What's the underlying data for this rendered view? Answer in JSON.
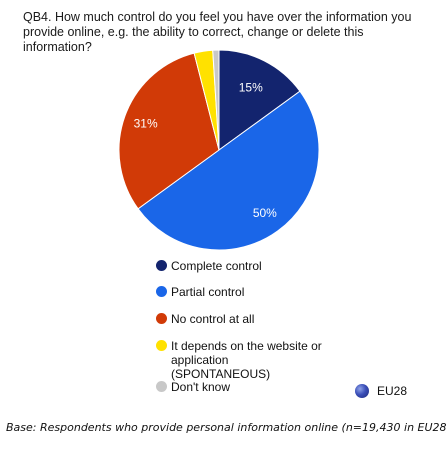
{
  "question": "QB4. How much control do you feel you have over the information you provide online, e.g. the ability to correct, change or delete this information?",
  "chart_data": {
    "type": "pie",
    "title": "",
    "slices": [
      {
        "label": "Complete control",
        "value": 15,
        "display": "15%",
        "color": "#13246e"
      },
      {
        "label": "Partial control",
        "value": 50,
        "display": "50%",
        "color": "#1a66e8"
      },
      {
        "label": "No control at all",
        "value": 31,
        "display": "31%",
        "color": "#d13a07"
      },
      {
        "label": "It depends on the website or application (SPONTANEOUS)",
        "value": 3,
        "display": "",
        "color": "#ffe100"
      },
      {
        "label": "Don't know",
        "value": 1,
        "display": "",
        "color": "#c8c8c8"
      }
    ],
    "start_angle_deg": 0,
    "direction": "clockwise",
    "legend_position": "bottom"
  },
  "legend": {
    "items": [
      {
        "label": "Complete control",
        "color": "#13246e"
      },
      {
        "label": "Partial control",
        "color": "#1a66e8"
      },
      {
        "label": "No control at all",
        "color": "#d13a07"
      },
      {
        "label": "It depends on the website or application (SPONTANEOUS)",
        "color": "#ffe100"
      },
      {
        "label": "Don't know",
        "color": "#c8c8c8"
      }
    ]
  },
  "badge": {
    "label": "EU28",
    "icon": "eu-globe-icon"
  },
  "base_note": "Base: Respondents who provide personal information online (n=19,430 in EU28)"
}
